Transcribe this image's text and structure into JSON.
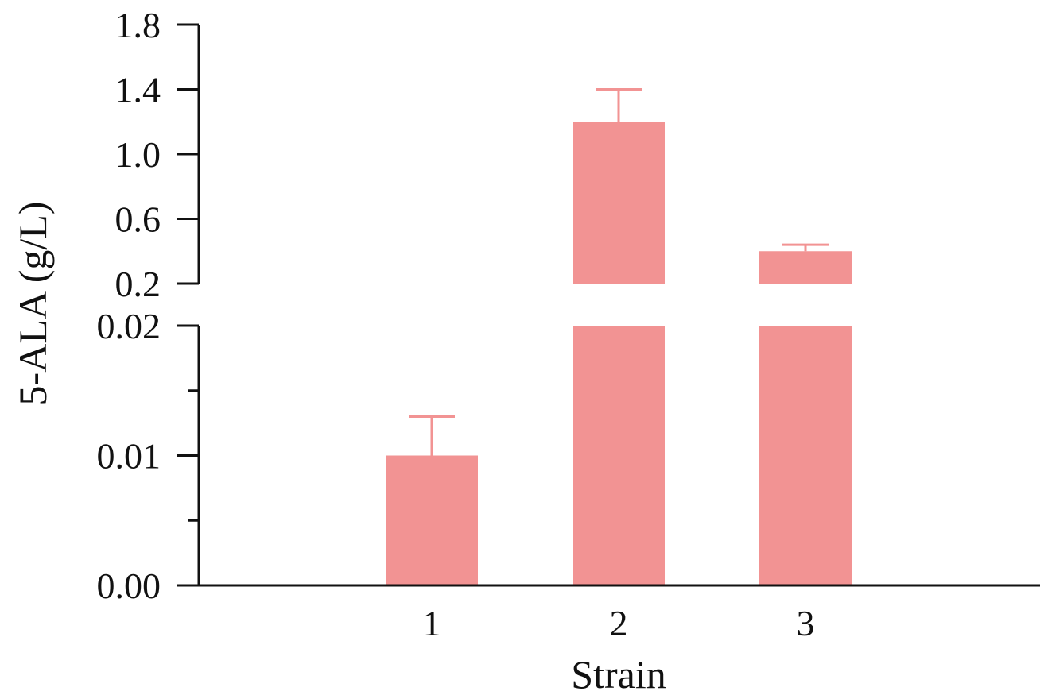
{
  "chart_data": {
    "type": "bar",
    "title": "",
    "xlabel": "Strain",
    "ylabel": "5-ALA (g/L)",
    "categories": [
      "1",
      "2",
      "3"
    ],
    "values": [
      0.01,
      1.2,
      0.4
    ],
    "error_upper": [
      0.013,
      1.4,
      0.44
    ],
    "bar_color": "#f29393",
    "y_axis_broken": true,
    "lower_segment": {
      "ylim": [
        0.0,
        0.02
      ],
      "major_ticks": [
        0.0,
        0.01,
        0.02
      ],
      "tick_labels": [
        "0.00",
        "0.01",
        "0.02"
      ],
      "minor_ticks": [
        0.005,
        0.015
      ]
    },
    "upper_segment": {
      "ylim": [
        0.2,
        1.8
      ],
      "major_ticks": [
        0.2,
        0.6,
        1.0,
        1.4,
        1.8
      ],
      "tick_labels": [
        "0.2",
        "0.6",
        "1.0",
        "1.4",
        "1.8"
      ]
    },
    "grid": false,
    "legend": "none"
  }
}
